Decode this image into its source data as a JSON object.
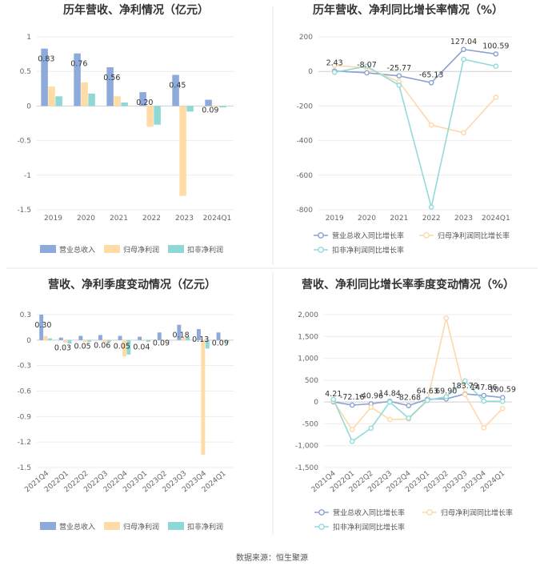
{
  "colors": {
    "revenue": "#8eaadb",
    "parent_profit": "#ffdca6",
    "deducted_profit": "#8ed8d8",
    "revenue_line": "#8aa2cf",
    "parent_line": "#fdd9a8",
    "deducted_line": "#93dada",
    "grid": "#ececec",
    "divider": "#e6e6e6"
  },
  "source_text": "数据来源：恒生聚源",
  "chart_data": [
    {
      "type": "bar",
      "title": "历年营收、净利情况（亿元）",
      "categories": [
        "2019",
        "2020",
        "2021",
        "2022",
        "2023",
        "2024Q1"
      ],
      "ylim": [
        -1.5,
        1
      ],
      "yticks": [
        "1",
        "0.5",
        "0",
        "-0.5",
        "-1",
        "-1.5"
      ],
      "ytick_values": [
        1,
        0.5,
        0,
        -0.5,
        -1,
        -1.5
      ],
      "grid": true,
      "legend": "bottom",
      "series": [
        {
          "name": "营业总收入",
          "values": [
            0.83,
            0.76,
            0.56,
            0.2,
            0.45,
            0.09
          ]
        },
        {
          "name": "归母净利润",
          "values": [
            0.28,
            0.34,
            0.14,
            -0.3,
            -1.3,
            -0.01
          ]
        },
        {
          "name": "扣非净利润",
          "values": [
            0.14,
            0.18,
            0.05,
            -0.27,
            -0.08,
            -0.02
          ]
        }
      ],
      "data_labels": [
        "0.83",
        "0.76",
        "0.56",
        "0.20",
        "0.45",
        "0.09"
      ]
    },
    {
      "type": "line",
      "title": "历年营收、净利同比增长率情况（%）",
      "categories": [
        "2019",
        "2020",
        "2021",
        "2022",
        "2023",
        "2024Q1"
      ],
      "ylim": [
        -800,
        200
      ],
      "yticks": [
        "200",
        "0",
        "-200",
        "-400",
        "-600",
        "-800"
      ],
      "ytick_values": [
        200,
        0,
        -200,
        -400,
        -600,
        -800
      ],
      "grid": true,
      "legend": "bottom",
      "series": [
        {
          "name": "营业总收入同比增长率",
          "values": [
            2.43,
            -8.07,
            -25.77,
            -65.13,
            127.04,
            100.59
          ]
        },
        {
          "name": "归母净利润同比增长率",
          "values": [
            35,
            20,
            -60,
            -310,
            -355,
            -150
          ]
        },
        {
          "name": "扣非净利润同比增长率",
          "values": [
            -5,
            30,
            -80,
            -785,
            70,
            30
          ]
        }
      ],
      "data_labels": [
        "2.43",
        "-8.07",
        "-25.77",
        "-65.13",
        "127.04",
        "100.59"
      ]
    },
    {
      "type": "bar",
      "title": "营收、净利季度变动情况（亿元）",
      "categories": [
        "2021Q4",
        "2022Q1",
        "2022Q2",
        "2022Q3",
        "2022Q4",
        "2023Q1",
        "2023Q2",
        "2023Q3",
        "2023Q4",
        "2024Q1"
      ],
      "ylim": [
        -1.5,
        0.3
      ],
      "yticks": [
        "0.3",
        "0",
        "-0.3",
        "-0.6",
        "-0.9",
        "-1.2",
        "-1.5"
      ],
      "ytick_values": [
        0.3,
        0,
        -0.3,
        -0.6,
        -0.9,
        -1.2,
        -1.5
      ],
      "grid": true,
      "legend": "bottom",
      "series": [
        {
          "name": "营业总收入",
          "values": [
            0.3,
            0.03,
            0.05,
            0.06,
            0.05,
            0.04,
            0.09,
            0.18,
            0.13,
            0.09
          ]
        },
        {
          "name": "归母净利润",
          "values": [
            0.05,
            -0.03,
            -0.02,
            -0.03,
            -0.19,
            -0.01,
            -0.01,
            0.03,
            -1.35,
            -0.01
          ]
        },
        {
          "name": "扣非净利润",
          "values": [
            0.02,
            -0.04,
            -0.02,
            -0.02,
            -0.17,
            -0.02,
            -0.01,
            0.04,
            -0.1,
            -0.02
          ]
        }
      ],
      "data_labels": [
        "0.30",
        "0.03",
        "0.05",
        "0.06",
        "0.05",
        "0.04",
        "0.09",
        "0.18",
        "0.13",
        "0.09"
      ]
    },
    {
      "type": "line",
      "title": "营收、净利同比增长率季度变动情况（%）",
      "categories": [
        "2021Q4",
        "2022Q1",
        "2022Q2",
        "2022Q3",
        "2022Q4",
        "2023Q1",
        "2023Q2",
        "2023Q3",
        "2023Q4",
        "2024Q1"
      ],
      "ylim": [
        -1500,
        2000
      ],
      "yticks": [
        "2,000",
        "1,500",
        "1,000",
        "500",
        "0",
        "-500",
        "-1,000",
        "-1,500"
      ],
      "ytick_values": [
        2000,
        1500,
        1000,
        500,
        0,
        -500,
        -1000,
        -1500
      ],
      "grid": true,
      "legend": "bottom",
      "series": [
        {
          "name": "营业总收入同比增长率",
          "values": [
            4.21,
            -72.16,
            -40.96,
            14.84,
            -82.68,
            64.63,
            69.9,
            183.79,
            147.86,
            100.59
          ]
        },
        {
          "name": "归母净利润同比增长率",
          "values": [
            20,
            -630,
            -120,
            -400,
            -390,
            30,
            1920,
            170,
            -590,
            -150
          ]
        },
        {
          "name": "扣非净利润同比增长率",
          "values": [
            60,
            -900,
            -600,
            0,
            -370,
            40,
            120,
            480,
            20,
            15
          ]
        }
      ],
      "data_labels": [
        "4.21",
        "-72.16",
        "-40.96",
        "14.84",
        "-82.68",
        "64.63",
        "69.90",
        "183.79",
        "147.86",
        "100.59"
      ]
    }
  ]
}
